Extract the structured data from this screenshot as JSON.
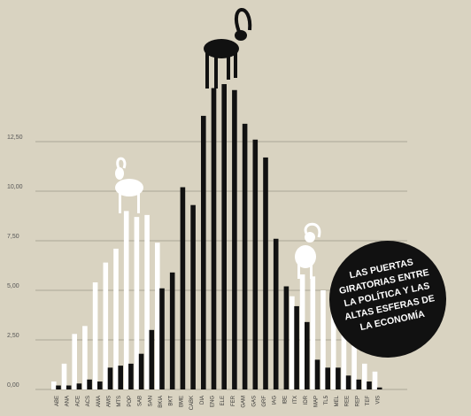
{
  "chart_data": {
    "type": "bar",
    "categories": [
      "ABE",
      "ANA",
      "ACE",
      "ACS",
      "AMA",
      "AMS",
      "MTS",
      "POP",
      "SAB",
      "SAN",
      "BKIA",
      "BKT",
      "BME",
      "CABK",
      "DIA",
      "ENG",
      "ELE",
      "FER",
      "GAM",
      "GAS",
      "GRF",
      "IAG",
      "IBE",
      "ITX",
      "IDR",
      "MAP",
      "TL5",
      "MEL",
      "REE",
      "REP",
      "TEF",
      "VIS"
    ],
    "series": [
      {
        "color": "#ffffff",
        "values": [
          0.4,
          1.3,
          2.8,
          3.2,
          5.4,
          6.4,
          7.1,
          9.0,
          8.7,
          8.8,
          7.4,
          null,
          null,
          null,
          null,
          null,
          null,
          null,
          null,
          null,
          null,
          null,
          null,
          4.7,
          5.8,
          5.7,
          5.0,
          3.8,
          2.9,
          2.3,
          1.3,
          0.9
        ]
      },
      {
        "color": "#111111",
        "values": [
          0.2,
          0.2,
          0.3,
          0.5,
          0.4,
          1.1,
          1.2,
          1.3,
          1.8,
          3.0,
          5.1,
          5.9,
          10.2,
          9.3,
          13.8,
          15.2,
          15.4,
          15.1,
          13.4,
          12.6,
          11.7,
          7.6,
          5.2,
          4.2,
          3.4,
          1.5,
          1.1,
          1.1,
          0.7,
          0.5,
          0.4,
          0.1
        ]
      }
    ],
    "ylim": [
      0,
      17.5
    ],
    "yticks": [
      {
        "value": 0,
        "label": "0,00"
      },
      {
        "value": 2.5,
        "label": "2,50"
      },
      {
        "value": 5,
        "label": "5,00"
      },
      {
        "value": 7.5,
        "label": "7,50"
      },
      {
        "value": 10,
        "label": "10,00"
      },
      {
        "value": 12.5,
        "label": "12,50"
      }
    ],
    "grid": true,
    "annotation": [
      "LAS PUERTAS",
      "GIRATORIAS ENTRE",
      "LA POLÍTICA Y LAS",
      "ALTAS ESFERAS DE",
      "LA ECONOMÍA"
    ]
  }
}
